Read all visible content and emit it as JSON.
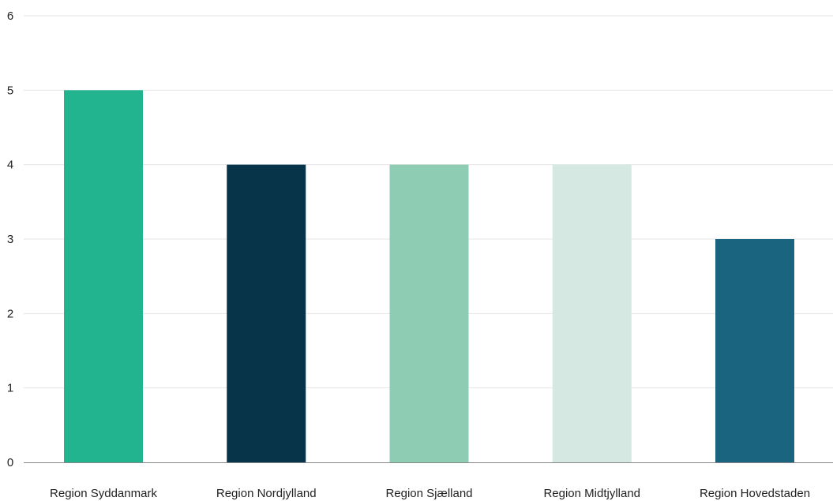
{
  "chart_data": {
    "type": "bar",
    "title": "",
    "xlabel": "",
    "ylabel": "",
    "categories": [
      "Region Syddanmark",
      "Region Nordjylland",
      "Region Sjælland",
      "Region Midtjylland",
      "Region Hovedstaden"
    ],
    "values": [
      5,
      4,
      4,
      4,
      3
    ],
    "bar_colors": [
      "#21b48f",
      "#073448",
      "#8ecdb3",
      "#d5e9e2",
      "#1b647f"
    ],
    "ylim": [
      0,
      6
    ],
    "yticks": [
      "0",
      "1",
      "2",
      "3",
      "4",
      "5",
      "6"
    ],
    "grid": true,
    "legend": "none"
  },
  "colors": {
    "gridline": "#e6e6e6",
    "axis": "#888888",
    "text": "#222222"
  }
}
